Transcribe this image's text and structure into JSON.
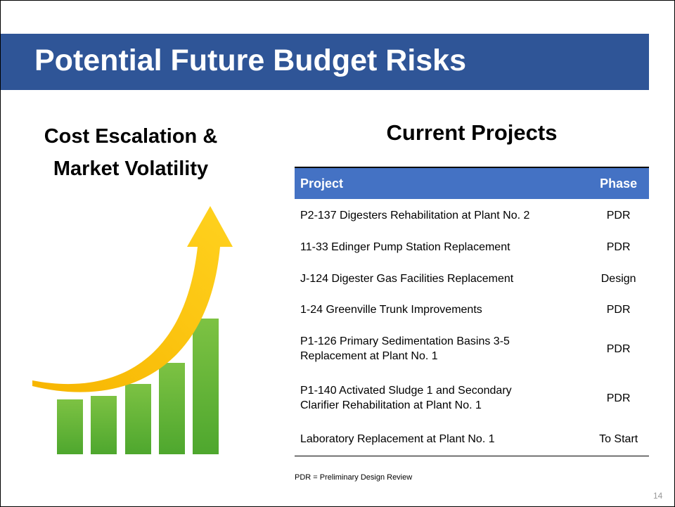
{
  "header": {
    "title": "Potential Future Budget Risks"
  },
  "left": {
    "heading": [
      "Cost Escalation &",
      "Market Volatility"
    ]
  },
  "table": {
    "title": "Current Projects",
    "columns": [
      "Project",
      "Phase"
    ],
    "rows": [
      [
        [
          "P2-137 Digesters Rehabilitation at Plant No. 2"
        ],
        "PDR"
      ],
      [
        [
          "11-33 Edinger Pump Station Replacement"
        ],
        "PDR"
      ],
      [
        [
          "J-124 Digester Gas Facilities Replacement"
        ],
        "Design"
      ],
      [
        [
          "1-24 Greenville Trunk Improvements"
        ],
        "PDR"
      ],
      [
        [
          "P1-126 Primary Sedimentation Basins 3-5",
          "Replacement at Plant No. 1"
        ],
        "PDR"
      ],
      [
        [
          "P1-140 Activated Sludge 1 and Secondary",
          "Clarifier Rehabilitation at Plant No. 1"
        ],
        "PDR"
      ],
      [
        [
          "Laboratory Replacement at Plant No. 1"
        ],
        "To Start"
      ]
    ],
    "footnote": "PDR = Preliminary Design Review"
  },
  "page_number": "14"
}
